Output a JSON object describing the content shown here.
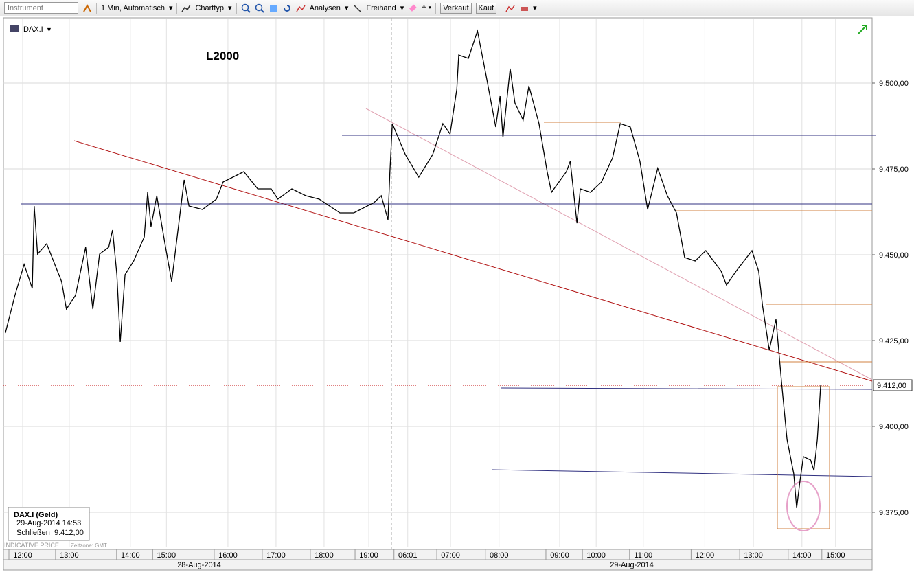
{
  "toolbar": {
    "instrument_placeholder": "Instrument",
    "interval": "1 Min, Automatisch",
    "chart_type": "Charttyp",
    "analyses": "Analysen",
    "freehand": "Freihand",
    "sell": "Verkauf",
    "buy": "Kauf"
  },
  "chart_data": {
    "type": "line",
    "annotation": "L2000",
    "series": [
      {
        "name": "DAX.I",
        "color": "#000000",
        "x": [
          -0.36,
          -0.16,
          0.03,
          0.2,
          0.24,
          0.31,
          0.5,
          0.64,
          0.81,
          0.91,
          1.1,
          1.31,
          1.46,
          1.6,
          1.79,
          1.87,
          1.96,
          2.03,
          2.13,
          2.31,
          2.53,
          2.6,
          2.67,
          2.79,
          2.96,
          3.1,
          3.17,
          3.36,
          3.46,
          3.74,
          4.03,
          4.17,
          4.46,
          4.6,
          4.89,
          5.17,
          5.31,
          5.6,
          5.89,
          6.17,
          6.6,
          6.89,
          7.31,
          7.46,
          7.6,
          7.64,
          7.69,
          7.96,
          8.24,
          8.53,
          8.74,
          8.89,
          9.03,
          9.07,
          9.27,
          9.46,
          9.64,
          9.84,
          9.93,
          9.99,
          10.14,
          10.24,
          10.41,
          10.53,
          10.74,
          10.91,
          11.0,
          11.31,
          11.39,
          11.53,
          11.6,
          11.81,
          12.04,
          12.27,
          12.43,
          12.64,
          12.84,
          13.0,
          13.21,
          13.41,
          13.6,
          13.77,
          13.99,
          14.21,
          14.53,
          14.64,
          14.84,
          15.17,
          15.31,
          15.39,
          15.53,
          15.67,
          15.79,
          15.9,
          16.04,
          16.1,
          16.17,
          16.24,
          16.39,
          16.46,
          16.53,
          16.6
        ],
        "values": [
          9427.2,
          9438.2,
          9447.2,
          9440.2,
          9464.2,
          9450.2,
          9453.2,
          9448.2,
          9442.2,
          9434.2,
          9438.2,
          9452.2,
          9434.2,
          9450.2,
          9452.2,
          9457.2,
          9444.2,
          9424.6,
          9444.2,
          9448.2,
          9455.2,
          9468.2,
          9458.2,
          9467.2,
          9453.2,
          9442.2,
          9450.2,
          9471.8,
          9464.2,
          9463.2,
          9466.2,
          9471.2,
          9473.2,
          9474.2,
          9469.2,
          9469.2,
          9466.2,
          9469.2,
          9467.2,
          9466.2,
          9462.2,
          9462.2,
          9465.2,
          9467.2,
          9460.2,
          9474.2,
          9488.2,
          9479.2,
          9472.6,
          9479.2,
          9488.2,
          9485.2,
          9498.2,
          9508.2,
          9507.2,
          9515.2,
          9502.2,
          9487.2,
          9496.2,
          9484.2,
          9504.2,
          9494.2,
          9489.2,
          9499.2,
          9488.2,
          9474.2,
          9468.2,
          9474.2,
          9477.2,
          9459.2,
          9469.2,
          9468.2,
          9471.2,
          9478.2,
          9488.2,
          9487.2,
          9477.2,
          9463.2,
          9475.2,
          9467.2,
          9462.2,
          9449.2,
          9448.2,
          9451.2,
          9445.2,
          9441.2,
          9445.2,
          9451.2,
          9445.2,
          9435.2,
          9422.2,
          9431.2,
          9412.2,
          9396.2,
          9386.2,
          9376.2,
          9384.2,
          9391.2,
          9390.2,
          9387.2,
          9396.2,
          9412
        ]
      }
    ],
    "xlim": [
      -0.4,
      17.67
    ],
    "ylim": [
      9364.8,
      9518.8
    ],
    "xticks": [
      {
        "value": 0,
        "label": "12:00"
      },
      {
        "value": 0.97,
        "label": "13:00"
      },
      {
        "value": 2.24,
        "label": "14:00"
      },
      {
        "value": 2.99,
        "label": "15:00"
      },
      {
        "value": 4.27,
        "label": "16:00"
      },
      {
        "value": 5.27,
        "label": "17:00"
      },
      {
        "value": 6.27,
        "label": "18:00"
      },
      {
        "value": 7.2,
        "label": "19:00"
      },
      {
        "value": 8.01,
        "label": "06:01"
      },
      {
        "value": 8.9,
        "label": "07:00"
      },
      {
        "value": 9.91,
        "label": "08:00"
      },
      {
        "value": 11.17,
        "label": "09:00"
      },
      {
        "value": 11.93,
        "label": "10:00"
      },
      {
        "value": 12.91,
        "label": "11:00"
      },
      {
        "value": 14.19,
        "label": "12:00"
      },
      {
        "value": 15.2,
        "label": "13:00"
      },
      {
        "value": 16.21,
        "label": "14:00"
      },
      {
        "value": 16.91,
        "label": "15:00"
      }
    ],
    "yticks": [
      {
        "value": 9375,
        "label": "9.375,00"
      },
      {
        "value": 9400,
        "label": "9.400,00"
      },
      {
        "value": 9425,
        "label": "9.425,00"
      },
      {
        "value": 9450,
        "label": "9.450,00"
      },
      {
        "value": 9475,
        "label": "9.475,00"
      },
      {
        "value": 9500,
        "label": "9.500,00"
      }
    ],
    "grid": true,
    "last_price": {
      "value": 9412,
      "label": "9.412,00",
      "color": "#c00000"
    },
    "date_labels": [
      "28-Aug-2014",
      "29-Aug-2014"
    ]
  },
  "info_box": {
    "title": "DAX.I (Geld)",
    "datetime": "29-Aug-2014 14:53",
    "close_label": "Schließen",
    "close_value": "9.412,00"
  },
  "footer": {
    "indicative": "INDICATIVE PRICE",
    "timezone": "Zeitzone: GMT"
  }
}
